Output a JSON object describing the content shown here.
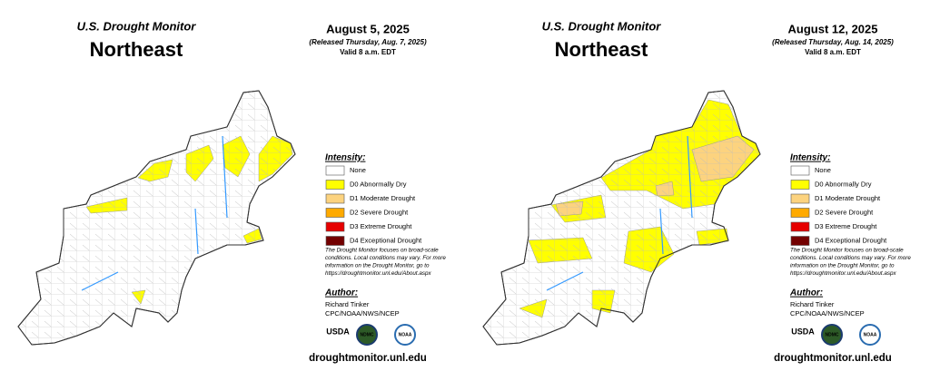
{
  "panels": [
    {
      "header": {
        "title": "U.S. Drought Monitor",
        "region": "Northeast",
        "date": "August 5, 2025",
        "released": "(Released Thursday, Aug. 7, 2025)",
        "valid": "Valid 8 a.m. EDT"
      },
      "legend": {
        "title": "Intensity:",
        "items": [
          {
            "label": "None",
            "color": "#ffffff"
          },
          {
            "label": "D0 Abnormally Dry",
            "color": "#ffff00"
          },
          {
            "label": "D1 Moderate Drought",
            "color": "#fcd37f"
          },
          {
            "label": "D2 Severe Drought",
            "color": "#ffaa00"
          },
          {
            "label": "D3 Extreme Drought",
            "color": "#e60000"
          },
          {
            "label": "D4 Exceptional Drought",
            "color": "#730000"
          }
        ]
      },
      "note": [
        "The Drought Monitor focuses on broad-scale",
        "conditions. Local conditions may vary. For more",
        "information on the Drought Monitor, go to",
        "https://droughtmonitor.unl.edu/About.aspx"
      ],
      "author": {
        "title": "Author:",
        "name": "Richard Tinker",
        "org": "CPC/NOAA/NWS/NCEP"
      },
      "logos": [
        "USDA",
        "NDMC",
        "NOAA"
      ],
      "url": "droughtmonitor.unl.edu"
    },
    {
      "header": {
        "title": "U.S. Drought Monitor",
        "region": "Northeast",
        "date": "August 12, 2025",
        "released": "(Released Thursday, Aug. 14, 2025)",
        "valid": "Valid 8 a.m. EDT"
      },
      "legend": {
        "title": "Intensity:",
        "items": [
          {
            "label": "None",
            "color": "#ffffff"
          },
          {
            "label": "D0 Abnormally Dry",
            "color": "#ffff00"
          },
          {
            "label": "D1 Moderate Drought",
            "color": "#fcd37f"
          },
          {
            "label": "D2 Severe Drought",
            "color": "#ffaa00"
          },
          {
            "label": "D3 Extreme Drought",
            "color": "#e60000"
          },
          {
            "label": "D4 Exceptional Drought",
            "color": "#730000"
          }
        ]
      },
      "note": [
        "The Drought Monitor focuses on broad-scale",
        "conditions. Local conditions may vary. For more",
        "information on the Drought Monitor, go to",
        "https://droughtmonitor.unl.edu/About.aspx"
      ],
      "author": {
        "title": "Author:",
        "name": "Richard Tinker",
        "org": "CPC/NOAA/NWS/NCEP"
      },
      "logos": [
        "USDA",
        "NDMC",
        "NOAA"
      ],
      "url": "droughtmonitor.unl.edu"
    }
  ]
}
